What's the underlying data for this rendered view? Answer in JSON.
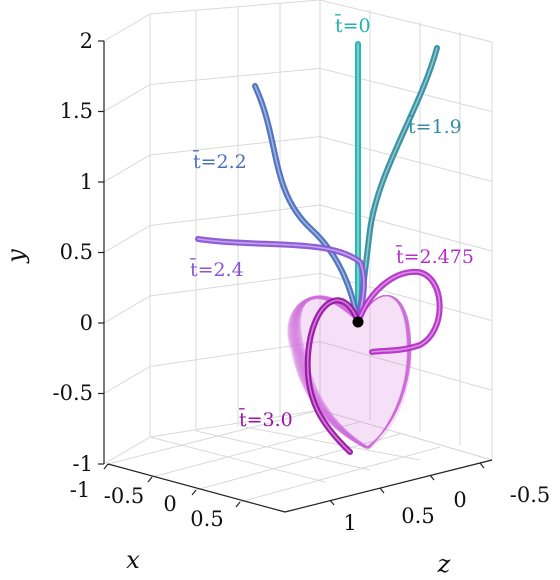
{
  "chart_data": {
    "type": "line",
    "title": "",
    "xlabel": "x",
    "ylabel": "y",
    "zlabel": "z",
    "ylim": [
      -1,
      2
    ],
    "yticks": [
      "2",
      "1.5",
      "1",
      "0.5",
      "0",
      "-0.5",
      "-1"
    ],
    "xticks": [
      "-1",
      "-0.5",
      "0",
      "0.5"
    ],
    "zticks": [
      "1",
      "0.5",
      "0",
      "-0.5"
    ],
    "grid": true,
    "series": [
      {
        "name": "t̄=0",
        "color": "#1fb3b0"
      },
      {
        "name": "t̄=1.9",
        "color": "#2f8ea0"
      },
      {
        "name": "t̄=2.2",
        "color": "#4a6fbf"
      },
      {
        "name": "t̄=2.4",
        "color": "#8a55d6"
      },
      {
        "name": "t̄=2.475",
        "color": "#b52fc8"
      },
      {
        "name": "t̄=3.0",
        "color": "#9a14a8"
      }
    ],
    "envelope_color": "#d070dc",
    "origin_marker_color": "#000000"
  }
}
